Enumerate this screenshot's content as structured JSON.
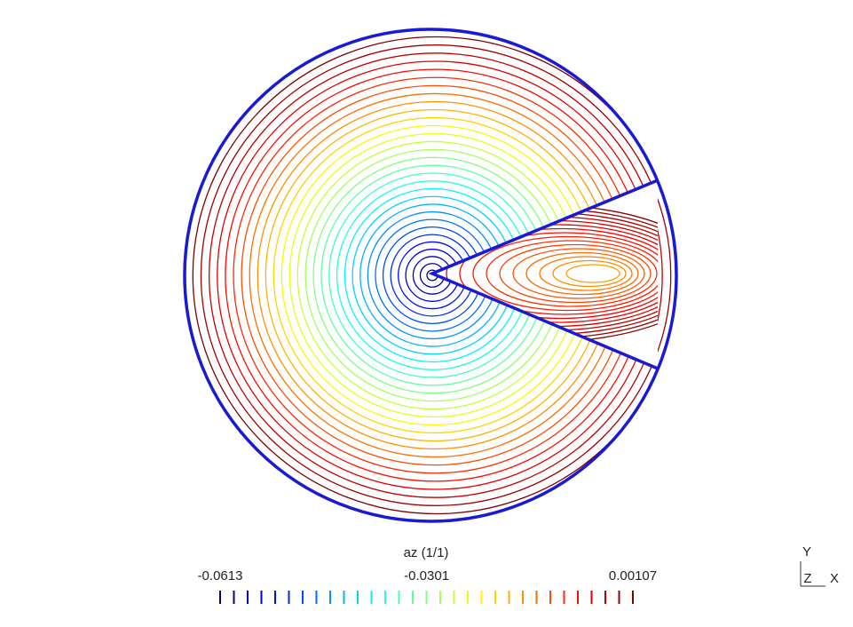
{
  "chart_data": {
    "type": "contour",
    "title": "az (1/1)",
    "clim": [
      -0.0613,
      0.00107
    ],
    "colorbar_ticks": [
      -0.0613,
      -0.0301,
      0.00107
    ],
    "levels": 31,
    "axes_labels": [
      "Y",
      "Z",
      "X"
    ],
    "boundary_color": "#1a1ad6"
  }
}
